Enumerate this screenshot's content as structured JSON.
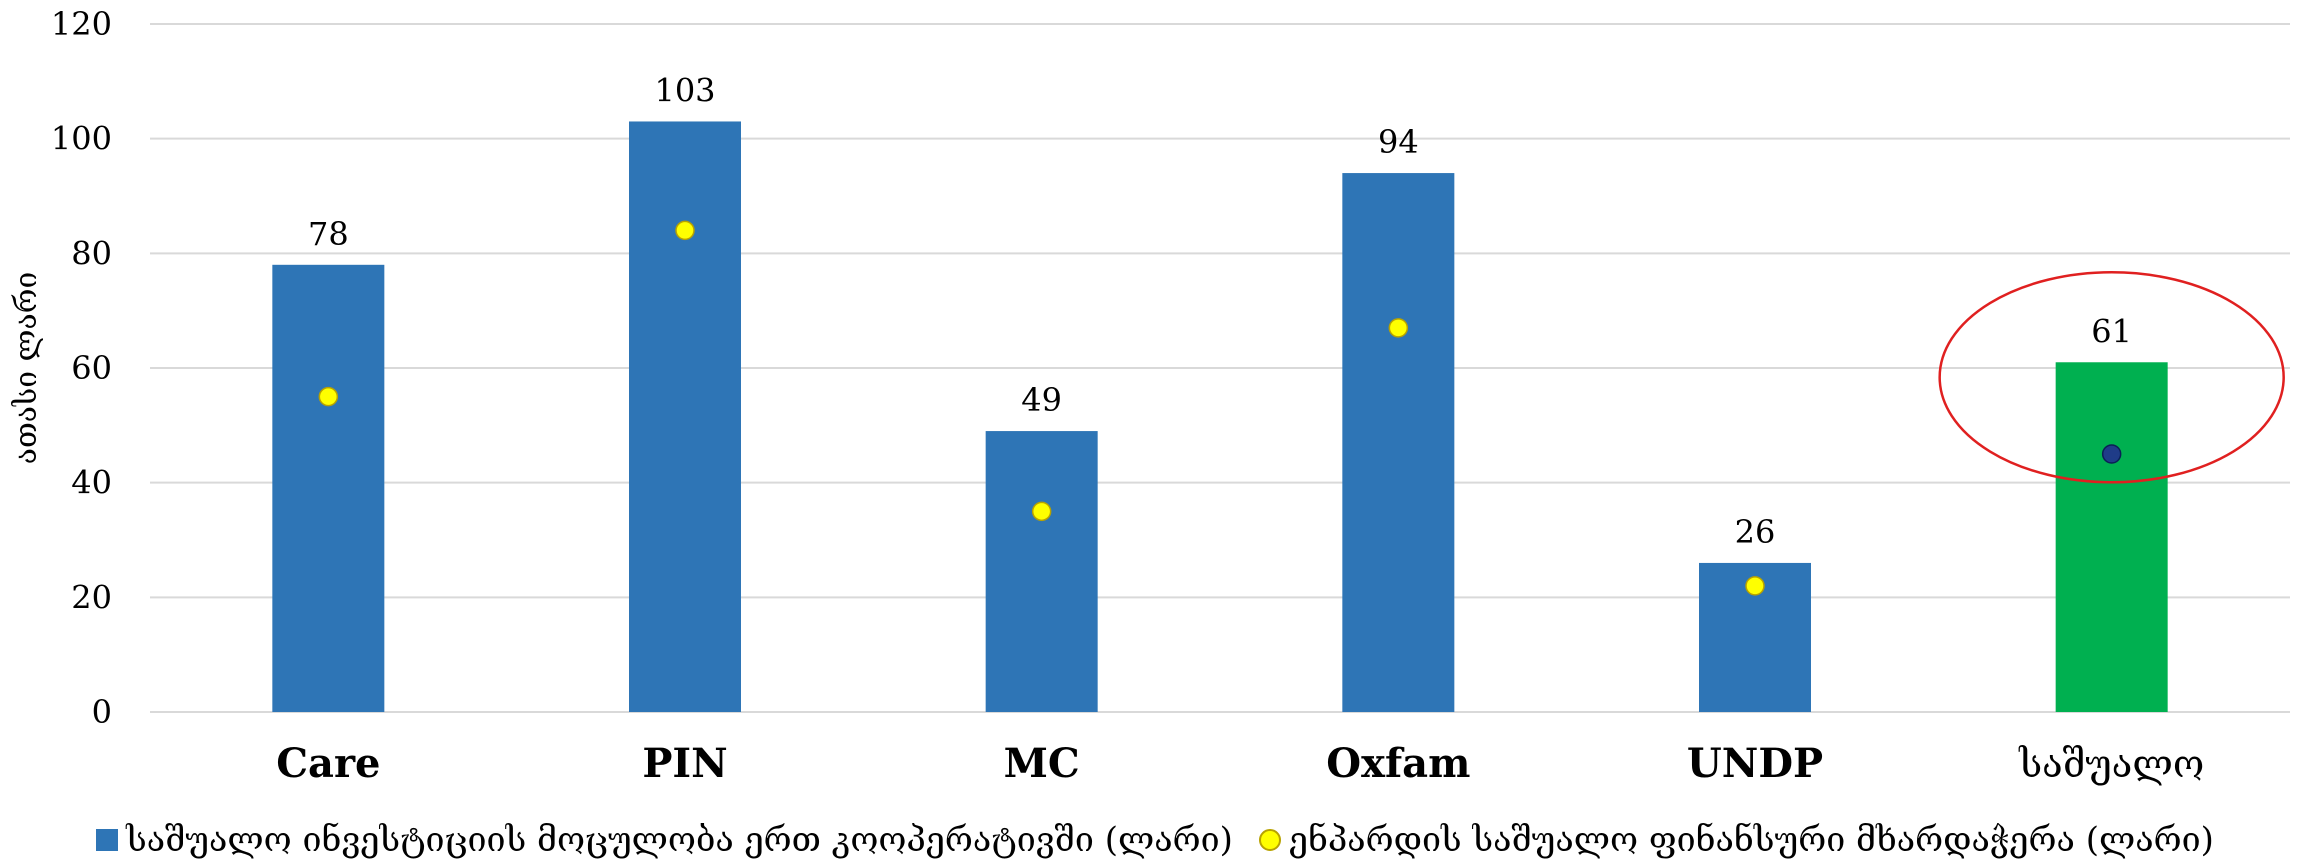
{
  "chart_data": {
    "type": "bar",
    "ylabel": "ათასი ლარი",
    "ylim": [
      0,
      120
    ],
    "yticks": [
      0,
      20,
      40,
      60,
      80,
      100,
      120
    ],
    "grid": true,
    "categories": [
      "Care",
      "PIN",
      "MC",
      "Oxfam",
      "UNDP",
      "საშუალო"
    ],
    "series": [
      {
        "name": "საშუალო ინვესტიციის მოცულობა ერთ კოოპერატივში (ლარი)",
        "type": "bar",
        "values": [
          78,
          103,
          49,
          94,
          26,
          61
        ],
        "data_labels": [
          "78",
          "103",
          "49",
          "94",
          "26",
          "61"
        ]
      },
      {
        "name": "ენპარდის საშუალო ფინანსური მხარდაჭერა (ლარი)",
        "type": "scatter",
        "values": [
          55,
          84,
          35,
          67,
          22,
          45
        ]
      }
    ],
    "colors": {
      "bar": "#2e75b6",
      "bar_highlight": "#00b050",
      "dot": "#ffff00",
      "dot_highlight": "#1f3c88",
      "highlight_ring": "#e02020",
      "grid": "#d9d9d9"
    },
    "highlight_category": "საშუალო",
    "legend_position": "bottom"
  }
}
